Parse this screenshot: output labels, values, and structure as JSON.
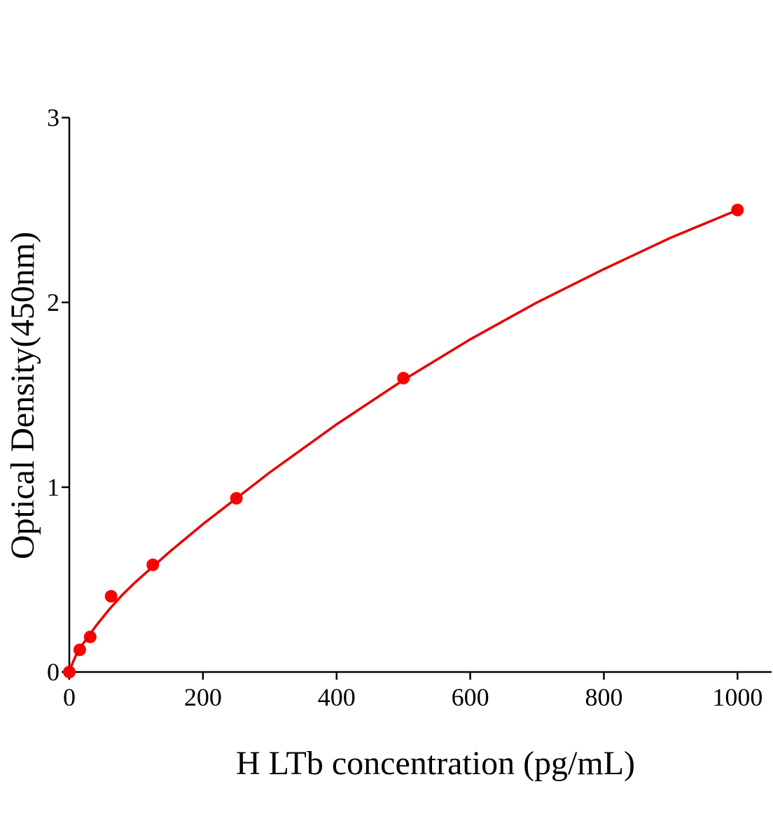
{
  "chart_data": {
    "type": "scatter",
    "x_label": "H LTb concentration (pg/mL)",
    "y_label": "Optical Density(450nm)",
    "xlim": [
      0,
      1051
    ],
    "ylim": [
      0,
      3
    ],
    "xticks": [
      0,
      200,
      400,
      600,
      800,
      1000
    ],
    "yticks": [
      0,
      1,
      2,
      3
    ],
    "grid": false,
    "series": [
      {
        "type": "scatter",
        "color": "#ff0000",
        "x": [
          0,
          15.6,
          31.25,
          62.5,
          125,
          250,
          500,
          1000
        ],
        "values": [
          0.0,
          0.12,
          0.19,
          0.41,
          0.58,
          0.94,
          1.59,
          2.5
        ]
      },
      {
        "type": "line",
        "color": "#e60000",
        "x": [
          0,
          5,
          10,
          20,
          40,
          60,
          80,
          100,
          150,
          200,
          250,
          300,
          400,
          500,
          600,
          700,
          800,
          900,
          1000
        ],
        "values": [
          0,
          0.05,
          0.09,
          0.15,
          0.25,
          0.34,
          0.42,
          0.49,
          0.65,
          0.8,
          0.94,
          1.08,
          1.34,
          1.58,
          1.8,
          2.0,
          2.18,
          2.35,
          2.5
        ]
      }
    ]
  }
}
